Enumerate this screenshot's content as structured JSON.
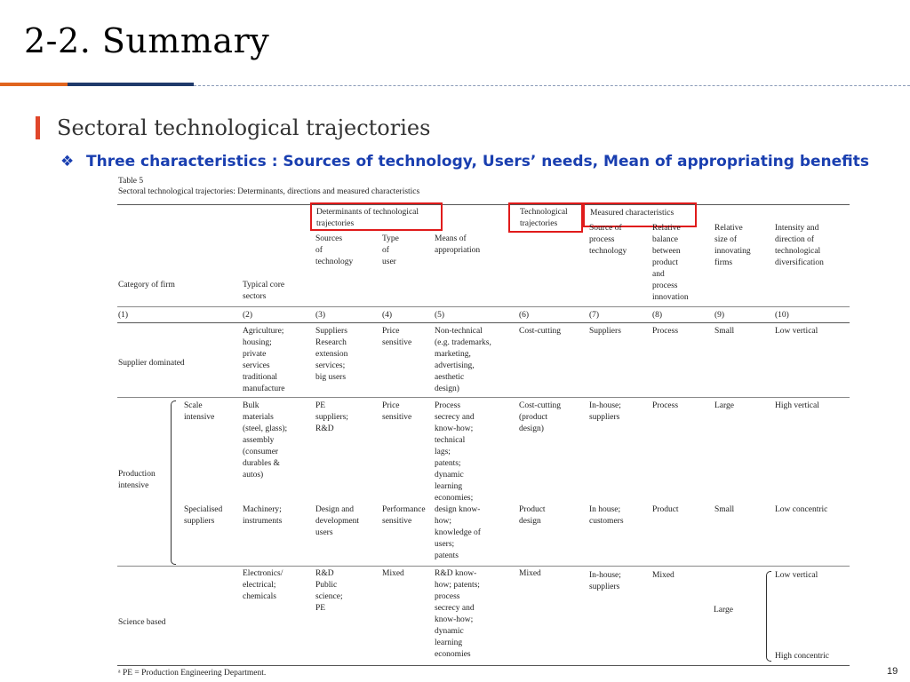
{
  "slide": {
    "title": "2-2. Summary",
    "subtitle": "Sectoral technological trajectories",
    "bullet_glyph": "❖",
    "bullet": "Three characteristics : Sources of technology, Users’ needs, Mean of appropriating benefits",
    "page_number": "19"
  },
  "table": {
    "label": "Table 5",
    "caption": "Sectoral technological trajectories: Determinants, directions and measured characteristics",
    "group_determinants": "Determinants of technological\ntrajectories",
    "group_trajectories": "Technological\ntrajectories",
    "group_measured": "Measured characteristics",
    "headers": {
      "category": "Category of firm",
      "core_sectors": "Typical core\nsectors",
      "sources": "Sources\nof\ntechnology",
      "type_user": "Type\nof\nuser",
      "appropriation": "Means of\nappropriation",
      "process_source": "Source of\nprocess\ntechnology",
      "balance": "Relative\nbalance\nbetween\nproduct\nand\nprocess\ninnovation",
      "size": "Relative\nsize of\ninnovating\nfirms",
      "diversification": "Intensity and\ndirection of\ntechnological\ndiversification"
    },
    "col_numbers": [
      "(1)",
      "(2)",
      "(3)",
      "(4)",
      "(5)",
      "(6)",
      "(7)",
      "(8)",
      "(9)",
      "(10)"
    ],
    "supplier": {
      "category": "Supplier dominated",
      "sectors": "Agriculture;\nhousing;\nprivate\n    services\ntraditional\n    manufacture",
      "sources": "Suppliers\nResearch\nextension\nservices;\nbig users",
      "user": "Price\nsensitive",
      "appropriation": "Non-technical\n(e.g. trademarks,\nmarketing,\nadvertising,\naesthetic\ndesign)",
      "trajectory": "Cost-cutting",
      "process_source": "Suppliers",
      "balance": "Process",
      "size": "Small",
      "diversification": "Low vertical"
    },
    "production_label": "Production\nintensive",
    "scale": {
      "category": "Scale\nintensive",
      "sectors": "Bulk\nmaterials\n(steel, glass);\nassembly\n(consumer\ndurables &\nautos)",
      "sources": "PE\nsuppliers;\nR&D",
      "user": "Price\nsensitive",
      "appropriation": "Process\nsecrecy and\nknow-how;\ntechnical\nlags;\npatents;\ndynamic\nlearning\neconomies;",
      "trajectory": "Cost-cutting\n(product\ndesign)",
      "process_source": "In-house;\nsuppliers",
      "balance": "Process",
      "size": "Large",
      "diversification": "High vertical"
    },
    "specialised": {
      "category": "Specialised\nsuppliers",
      "sectors": "Machinery;\ninstruments",
      "sources": "Design and\ndevelopment\nusers",
      "user": "Performance\nsensitive",
      "appropriation": "design know-\nhow;\nknowledge of\nusers;\npatents",
      "trajectory": "Product\ndesign",
      "process_source": "In house;\ncustomers",
      "balance": "Product",
      "size": "Small",
      "diversification": "Low concentric"
    },
    "science": {
      "category": "Science based",
      "sectors": "Electronics/\nelectrical;\nchemicals",
      "sources": "R&D\nPublic\nscience;\nPE",
      "user": "Mixed",
      "appropriation": "R&D know-\nhow; patents;\nprocess\nsecrecy and\nknow-how;\ndynamic\nlearning\neconomies",
      "trajectory": "Mixed",
      "process_source": "In-house;\nsuppliers",
      "balance": "Mixed",
      "size": "Large",
      "diversification_1": "Low vertical",
      "diversification_2": "High concentric"
    },
    "footnote": "ᵃ  PE = Production Engineering Department."
  }
}
